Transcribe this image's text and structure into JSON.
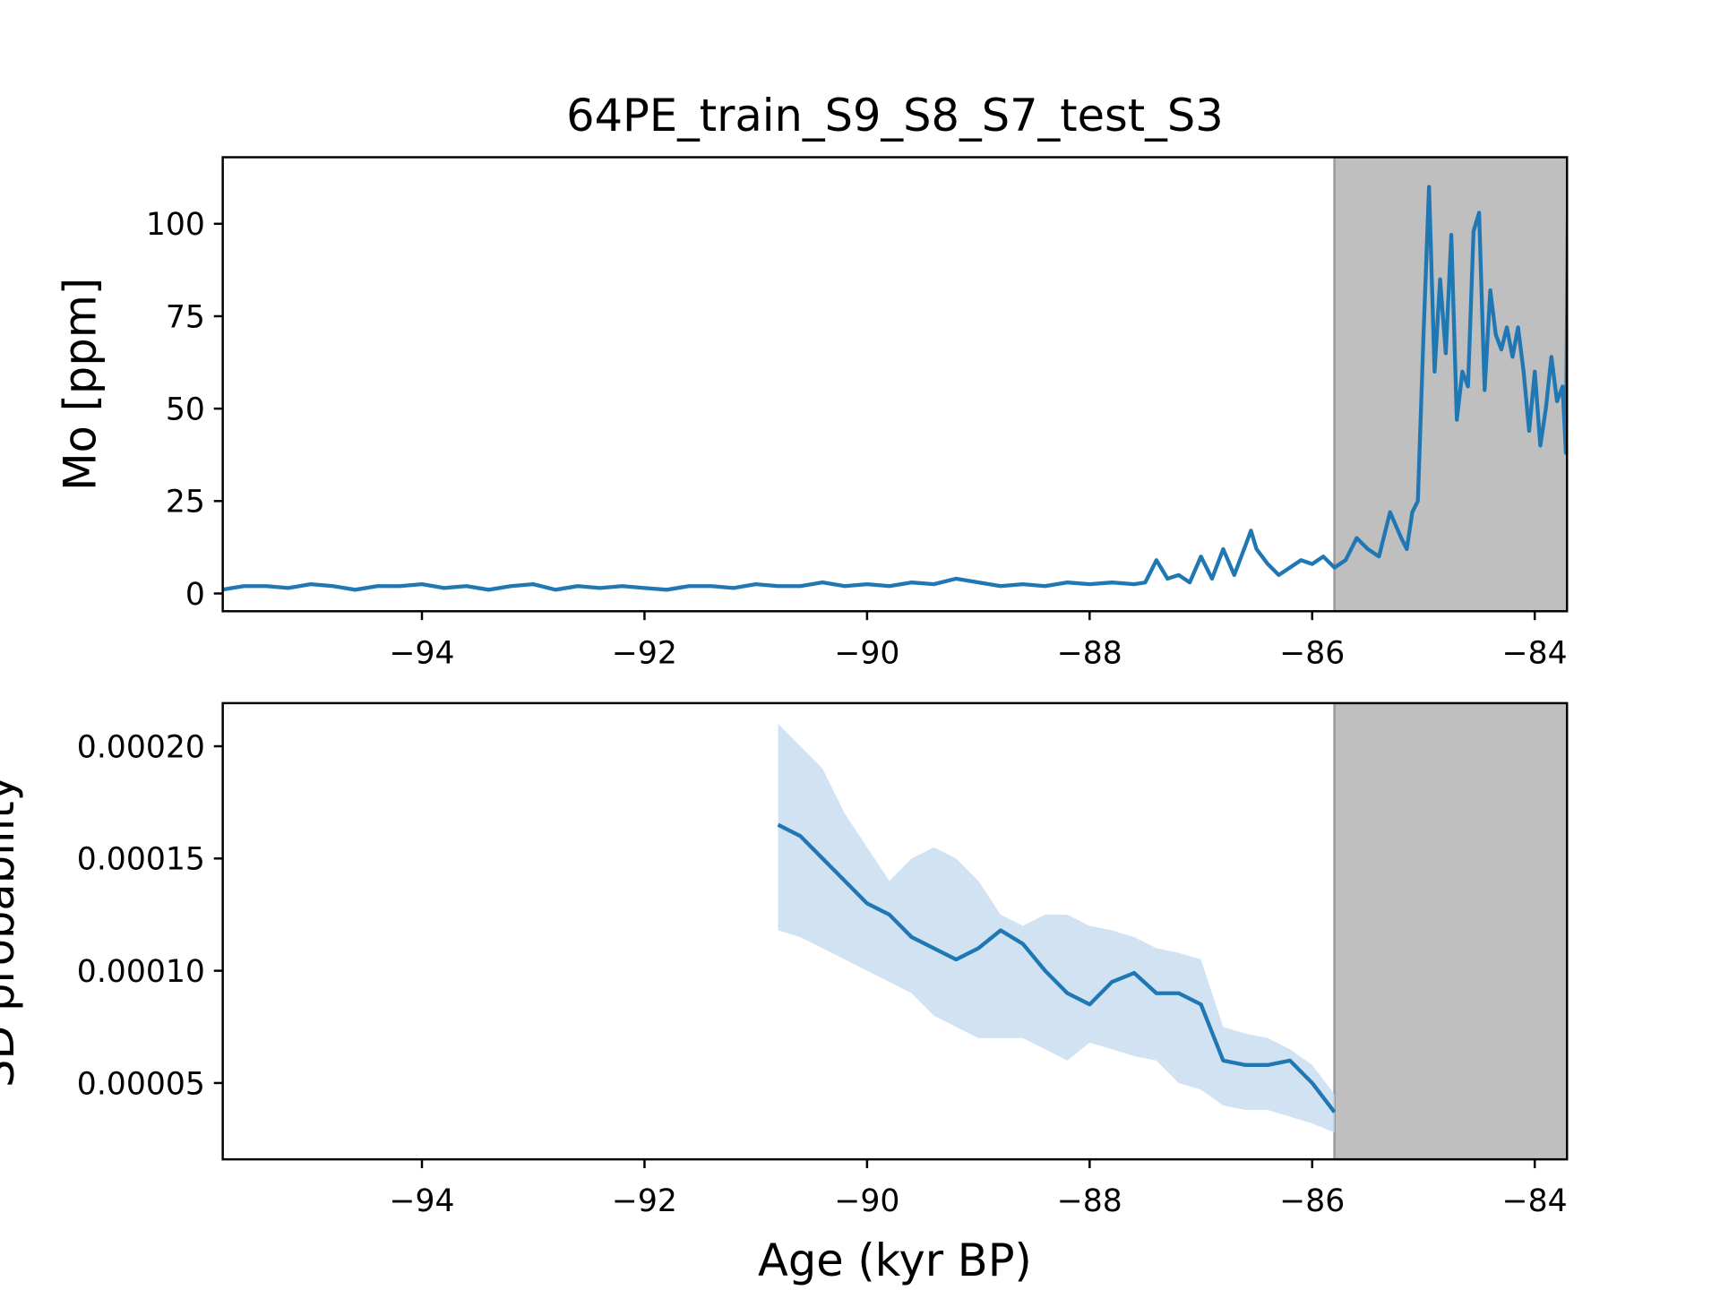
{
  "chart_data": [
    {
      "type": "line",
      "title": "64PE_train_S9_S8_S7_test_S3",
      "ylabel": "Mo [ppm]",
      "color": "#1f77b4",
      "x": [
        -95.8,
        -95.6,
        -95.4,
        -95.2,
        -95.0,
        -94.8,
        -94.6,
        -94.4,
        -94.2,
        -94.0,
        -93.8,
        -93.6,
        -93.4,
        -93.2,
        -93.0,
        -92.8,
        -92.6,
        -92.4,
        -92.2,
        -92.0,
        -91.8,
        -91.6,
        -91.4,
        -91.2,
        -91.0,
        -90.8,
        -90.6,
        -90.4,
        -90.2,
        -90.0,
        -89.8,
        -89.6,
        -89.4,
        -89.2,
        -89.0,
        -88.8,
        -88.6,
        -88.4,
        -88.2,
        -88.0,
        -87.8,
        -87.6,
        -87.5,
        -87.4,
        -87.3,
        -87.2,
        -87.1,
        -87.0,
        -86.9,
        -86.8,
        -86.7,
        -86.6,
        -86.55,
        -86.5,
        -86.4,
        -86.3,
        -86.2,
        -86.1,
        -86.0,
        -85.9,
        -85.8,
        -85.7,
        -85.6,
        -85.5,
        -85.4,
        -85.3,
        -85.2,
        -85.15,
        -85.1,
        -85.05,
        -85.0,
        -84.95,
        -84.9,
        -84.85,
        -84.8,
        -84.75,
        -84.7,
        -84.65,
        -84.6,
        -84.55,
        -84.5,
        -84.45,
        -84.4,
        -84.35,
        -84.3,
        -84.25,
        -84.2,
        -84.15,
        -84.1,
        -84.05,
        -84.0,
        -83.95,
        -83.9,
        -83.85,
        -83.8,
        -83.75,
        -83.72,
        -83.7
      ],
      "values": [
        1,
        2,
        2,
        1.5,
        2.5,
        2,
        1,
        2,
        2,
        2.5,
        1.5,
        2,
        1,
        2,
        2.5,
        1,
        2,
        1.5,
        2,
        1.5,
        1,
        2,
        2,
        1.5,
        2.5,
        2,
        2,
        3,
        2,
        2.5,
        2,
        3,
        2.5,
        4,
        3,
        2,
        2.5,
        2,
        3,
        2.5,
        3,
        2.5,
        3,
        9,
        4,
        5,
        3,
        10,
        4,
        12,
        5,
        13,
        17,
        12,
        8,
        5,
        7,
        9,
        8,
        10,
        7,
        9,
        15,
        12,
        10,
        22,
        15,
        12,
        22,
        25,
        70,
        110,
        60,
        85,
        65,
        97,
        47,
        60,
        56,
        98,
        103,
        55,
        82,
        70,
        66,
        72,
        64,
        72,
        60,
        44,
        60,
        40,
        50,
        64,
        52,
        56,
        38,
        113
      ],
      "xlim": [
        -95.79,
        -83.71
      ],
      "ylim": [
        -4.8,
        118
      ],
      "xticks": [
        {
          "value": -94,
          "label": "−94"
        },
        {
          "value": -92,
          "label": "−92"
        },
        {
          "value": -90,
          "label": "−90"
        },
        {
          "value": -88,
          "label": "−88"
        },
        {
          "value": -86,
          "label": "−86"
        },
        {
          "value": -84,
          "label": "−84"
        }
      ],
      "yticks": [
        0,
        25,
        50,
        75,
        100
      ],
      "shade": [
        -85.8,
        -83.71
      ],
      "shade_color": "#bfbfbf"
    },
    {
      "type": "band",
      "ylabel": "SD probability",
      "xlabel": "Age (kyr BP)",
      "color": "#1f77b4",
      "band_color": "#c6dbef",
      "x": [
        -90.8,
        -90.6,
        -90.4,
        -90.2,
        -90.0,
        -89.8,
        -89.6,
        -89.4,
        -89.2,
        -89.0,
        -88.8,
        -88.6,
        -88.4,
        -88.2,
        -88.0,
        -87.8,
        -87.6,
        -87.4,
        -87.2,
        -87.0,
        -86.8,
        -86.6,
        -86.4,
        -86.2,
        -86.0,
        -85.8
      ],
      "values": [
        0.000165,
        0.00016,
        0.00015,
        0.00014,
        0.00013,
        0.000125,
        0.000115,
        0.00011,
        0.000105,
        0.00011,
        0.000118,
        0.000112,
        0.0001,
        9e-05,
        8.5e-05,
        9.5e-05,
        9.9e-05,
        9e-05,
        9e-05,
        8.5e-05,
        6e-05,
        5.8e-05,
        5.8e-05,
        6e-05,
        5e-05,
        3.7e-05
      ],
      "upper": [
        0.00021,
        0.0002,
        0.00019,
        0.00017,
        0.000155,
        0.00014,
        0.00015,
        0.000155,
        0.00015,
        0.00014,
        0.000125,
        0.00012,
        0.000125,
        0.000125,
        0.00012,
        0.000118,
        0.000115,
        0.00011,
        0.000108,
        0.000105,
        7.5e-05,
        7.2e-05,
        7e-05,
        6.5e-05,
        5.8e-05,
        4.5e-05
      ],
      "lower": [
        0.000118,
        0.000115,
        0.00011,
        0.000105,
        0.0001,
        9.5e-05,
        9e-05,
        8e-05,
        7.5e-05,
        7e-05,
        7e-05,
        7e-05,
        6.5e-05,
        6e-05,
        6.8e-05,
        6.5e-05,
        6.2e-05,
        6e-05,
        5e-05,
        4.7e-05,
        4e-05,
        3.8e-05,
        3.8e-05,
        3.5e-05,
        3.2e-05,
        2.8e-05
      ],
      "xlim": [
        -95.79,
        -83.71
      ],
      "ylim": [
        1.6e-05,
        0.0002192
      ],
      "xticks": [
        {
          "value": -94,
          "label": "−94"
        },
        {
          "value": -92,
          "label": "−92"
        },
        {
          "value": -90,
          "label": "−90"
        },
        {
          "value": -88,
          "label": "−88"
        },
        {
          "value": -86,
          "label": "−86"
        },
        {
          "value": -84,
          "label": "−84"
        }
      ],
      "yticks": [
        {
          "value": 0.0002,
          "label": "0.00020"
        },
        0.00015,
        {
          "value": 0.0001,
          "label": "0.00010"
        },
        5e-05
      ],
      "shade": [
        -85.8,
        -83.71
      ],
      "shade_color": "#bfbfbf"
    }
  ]
}
